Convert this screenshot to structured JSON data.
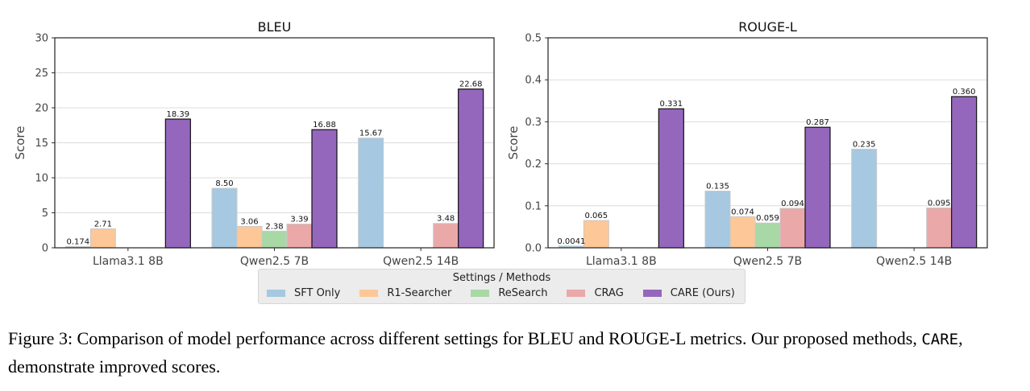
{
  "figure": {
    "caption_prefix": "Figure 3: Comparison of model performance across different settings for BLEU and ROUGE-L metrics.  Our proposed methods, ",
    "caption_mono": "CARE",
    "caption_suffix": ", demonstrate improved scores."
  },
  "legend": {
    "title": "Settings / Methods",
    "items": [
      {
        "label": "SFT Only",
        "color": "#a6c8e0"
      },
      {
        "label": "R1-Searcher",
        "color": "#fdc797"
      },
      {
        "label": "ReSearch",
        "color": "#a8d8a6"
      },
      {
        "label": "CRAG",
        "color": "#eba8a8"
      },
      {
        "label": "CARE (Ours)",
        "color": "#9467bd"
      }
    ]
  },
  "chart_data": [
    {
      "type": "bar",
      "title": "BLEU",
      "xlabel": "",
      "ylabel": "Score",
      "ylim": [
        0,
        30
      ],
      "yticks": [
        0,
        5,
        10,
        15,
        20,
        25,
        30
      ],
      "ytick_labels": [
        "0",
        "5",
        "10",
        "15",
        "20",
        "25",
        "30"
      ],
      "grid": "y",
      "categories": [
        "Llama3.1 8B",
        "Qwen2.5 7B",
        "Qwen2.5 14B"
      ],
      "series": [
        {
          "name": "SFT Only",
          "values": [
            0.174,
            8.5,
            15.67
          ],
          "labels": [
            "0.174",
            "8.50",
            "15.67"
          ]
        },
        {
          "name": "R1-Searcher",
          "values": [
            2.71,
            3.06,
            null
          ],
          "labels": [
            "2.71",
            "3.06",
            null
          ]
        },
        {
          "name": "ReSearch",
          "values": [
            null,
            2.38,
            null
          ],
          "labels": [
            null,
            "2.38",
            null
          ]
        },
        {
          "name": "CRAG",
          "values": [
            null,
            3.39,
            3.48
          ],
          "labels": [
            null,
            "3.39",
            "3.48"
          ]
        },
        {
          "name": "CARE (Ours)",
          "values": [
            18.39,
            16.88,
            22.68
          ],
          "labels": [
            "18.39",
            "16.88",
            "22.68"
          ]
        }
      ],
      "legend": "bottom-center"
    },
    {
      "type": "bar",
      "title": "ROUGE-L",
      "xlabel": "",
      "ylabel": "Score",
      "ylim": [
        0,
        0.5
      ],
      "yticks": [
        0,
        0.1,
        0.2,
        0.3,
        0.4,
        0.5
      ],
      "ytick_labels": [
        "0.0",
        "0.1",
        "0.2",
        "0.3",
        "0.4",
        "0.5"
      ],
      "grid": "y",
      "categories": [
        "Llama3.1 8B",
        "Qwen2.5 7B",
        "Qwen2.5 14B"
      ],
      "series": [
        {
          "name": "SFT Only",
          "values": [
            0.0041,
            0.135,
            0.235
          ],
          "labels": [
            "0.0041",
            "0.135",
            "0.235"
          ]
        },
        {
          "name": "R1-Searcher",
          "values": [
            0.065,
            0.074,
            null
          ],
          "labels": [
            "0.065",
            "0.074",
            null
          ]
        },
        {
          "name": "ReSearch",
          "values": [
            null,
            0.059,
            null
          ],
          "labels": [
            null,
            "0.059",
            null
          ]
        },
        {
          "name": "CRAG",
          "values": [
            null,
            0.094,
            0.095
          ],
          "labels": [
            null,
            "0.094",
            "0.095"
          ]
        },
        {
          "name": "CARE (Ours)",
          "values": [
            0.331,
            0.287,
            0.36
          ],
          "labels": [
            "0.331",
            "0.287",
            "0.360"
          ]
        }
      ],
      "legend": "bottom-center"
    }
  ]
}
